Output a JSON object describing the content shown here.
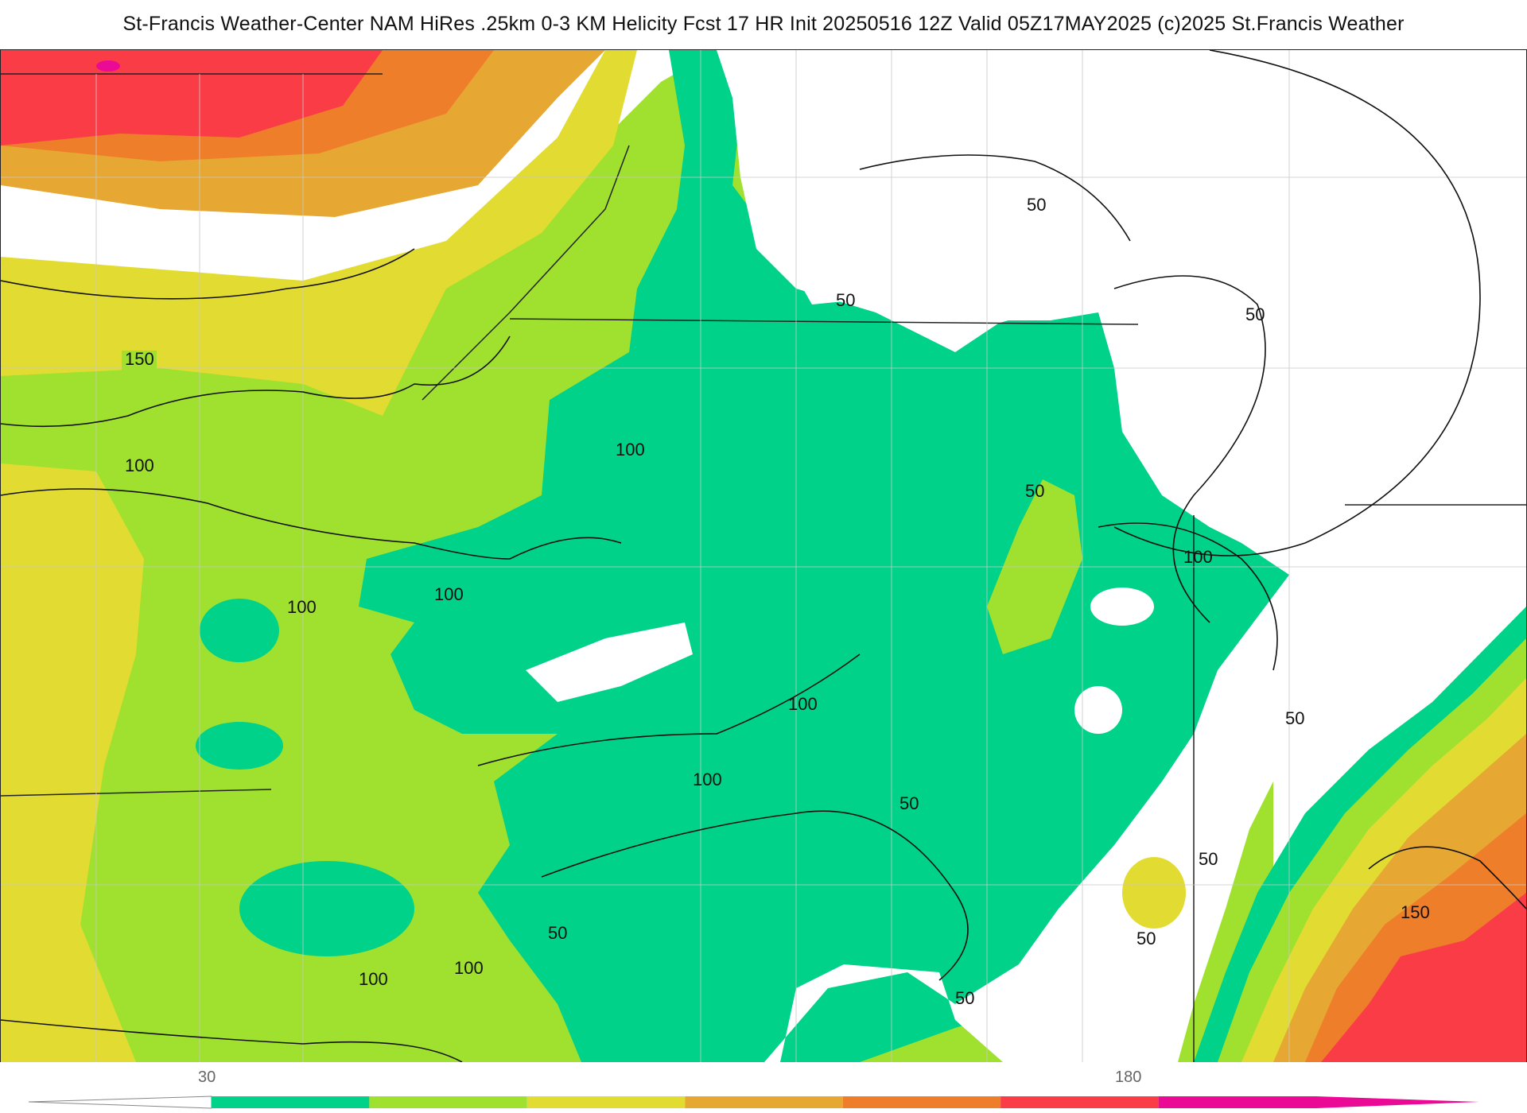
{
  "title": "St-Francis Weather-Center NAM HiRes .25km 0-3 KM Helicity Fcst 17 HR Init 20250516 12Z  Valid 05Z17MAY2025    (c)2025 St.Francis Weather",
  "contour_labels": [
    "50",
    "100",
    "150"
  ],
  "legend": {
    "tick_labels": [
      "30",
      "180"
    ],
    "colors": [
      "#00d28a",
      "#a0e02e",
      "#e2dc32",
      "#e6a832",
      "#ef7e2b",
      "#fa3c46",
      "#eb0a96"
    ]
  },
  "palette": {
    "land_white": "#ffffff",
    "band_30": "#00d28a",
    "band_60": "#a0e02e",
    "band_90": "#e2dc32",
    "band_120": "#e6a832",
    "band_150": "#ef7e2b",
    "band_180": "#fa3c46",
    "band_210": "#eb0a96",
    "contour_line": "#111111",
    "county_line": "#c8c8c8"
  }
}
